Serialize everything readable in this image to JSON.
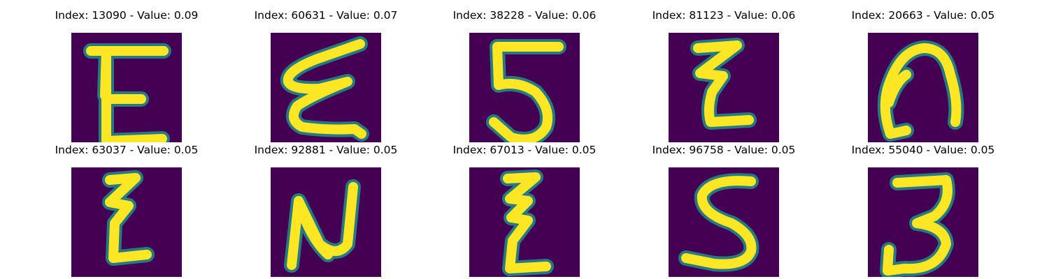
{
  "panels": [
    {
      "label": "Index: 13090 - Value: 0.09",
      "glyph": "E"
    },
    {
      "label": "Index: 60631 - Value: 0.07",
      "glyph": "epsilon-slanted"
    },
    {
      "label": "Index: 38228 - Value: 0.06",
      "glyph": "5"
    },
    {
      "label": "Index: 81123 - Value: 0.06",
      "glyph": "zigzag-z"
    },
    {
      "label": "Index: 20663 - Value: 0.05",
      "glyph": "n-arch"
    },
    {
      "label": "Index: 63037 - Value: 0.05",
      "glyph": "zigzag-z-thin"
    },
    {
      "label": "Index: 92881 - Value: 0.05",
      "glyph": "n-bold"
    },
    {
      "label": "Index: 67013 - Value: 0.05",
      "glyph": "zigzag-z-tall"
    },
    {
      "label": "Index: 96758 - Value: 0.05",
      "glyph": "S"
    },
    {
      "label": "Index: 55040 - Value: 0.05",
      "glyph": "3"
    }
  ],
  "colors": {
    "background": "#440154",
    "stroke": "#fde725",
    "edge": "#21918c"
  }
}
